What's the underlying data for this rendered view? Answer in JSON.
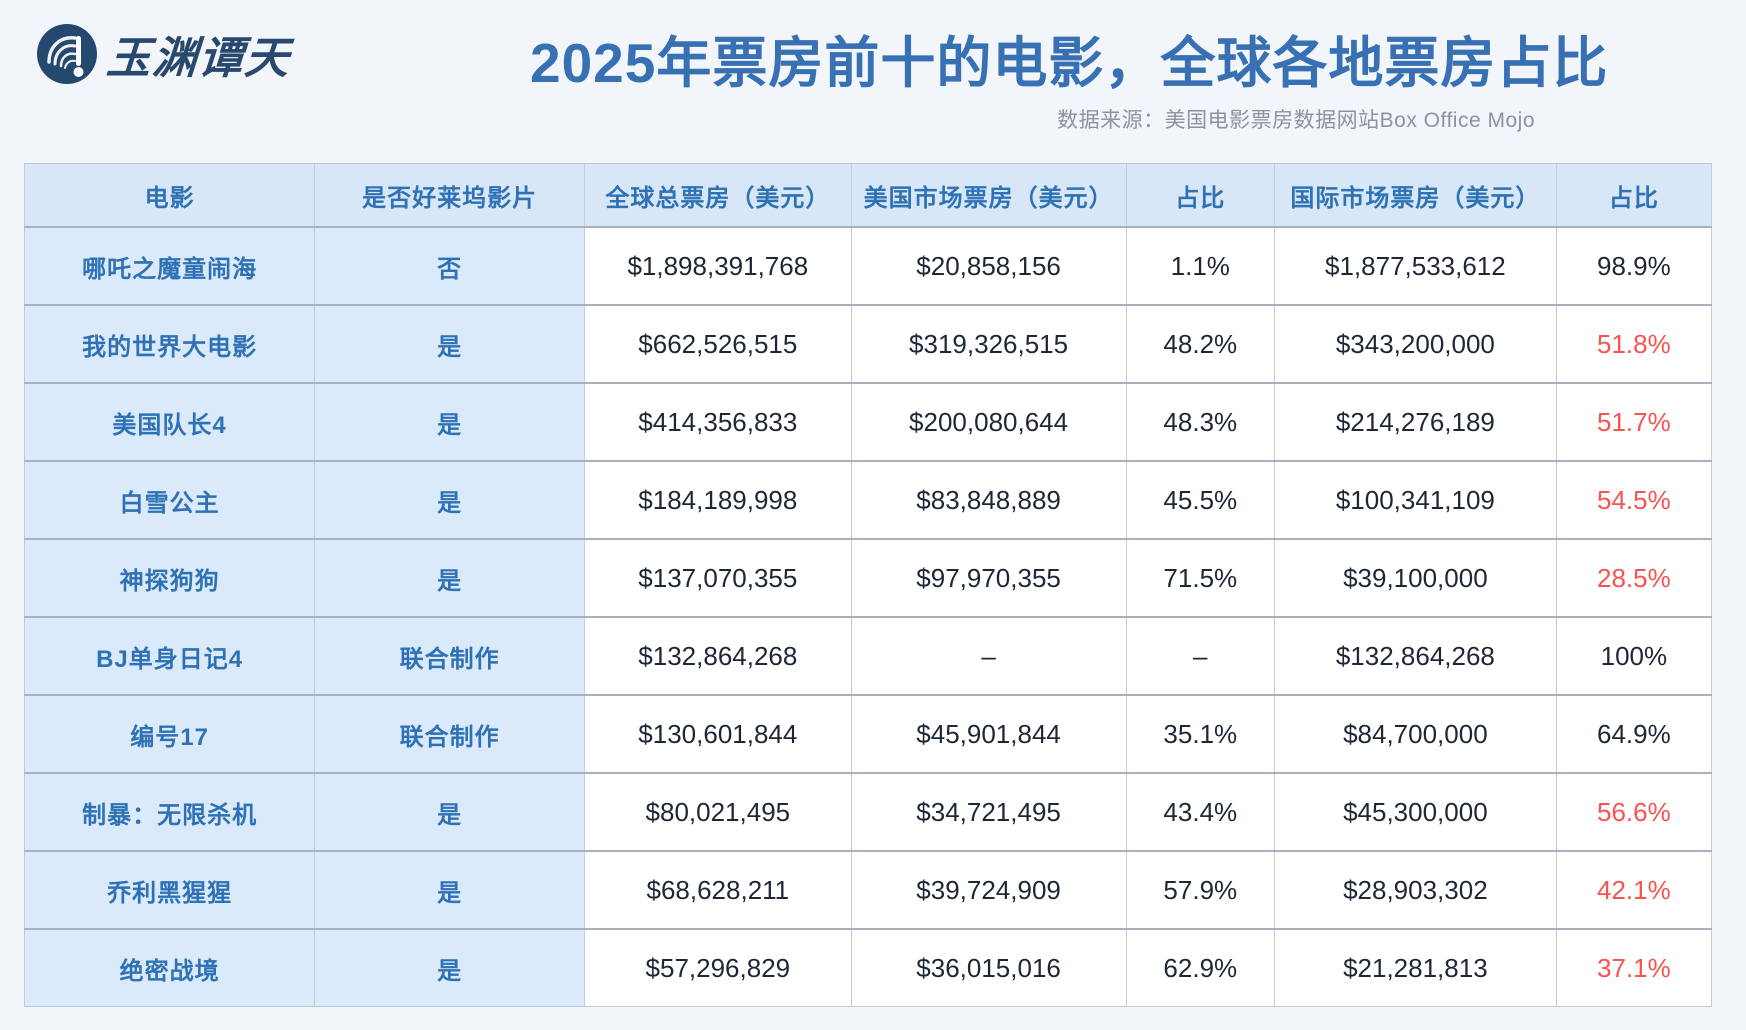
{
  "header": {
    "logo_text": "玉渊谭天",
    "title": "2025年票房前十的电影，全球各地票房占比",
    "source": "数据来源：美国电影票房数据网站Box Office Mojo"
  },
  "colors": {
    "page_background": "#f2f5f9",
    "title_blue": "#3770b3",
    "table_header_bg": "#d7e7f8",
    "label_cell_bg": "#dbeafb",
    "label_text_blue": "#2e72b5",
    "value_text_dark": "#1e2736",
    "share_red": "#f7534f",
    "logo_navy": "#24486e"
  },
  "chart_data": {
    "type": "table",
    "title": "2025年票房前十的电影，全球各地票房占比",
    "source": "数据来源：美国电影票房数据网站Box Office Mojo",
    "columns": [
      "电影",
      "是否好莱坞影片",
      "全球总票房（美元）",
      "美国市场票房（美元）",
      "占比",
      "国际市场票房（美元）",
      "占比"
    ],
    "column_width_percents": [
      17.2,
      16.0,
      15.8,
      16.3,
      8.8,
      16.7,
      9.2
    ],
    "label_column_count": 2,
    "rows": [
      [
        "哪吒之魔童闹海",
        "否",
        "$1,898,391,768",
        "$20,858,156",
        "1.1%",
        "$1,877,533,612",
        "98.9%"
      ],
      [
        "我的世界大电影",
        "是",
        "$662,526,515",
        "$319,326,515",
        "48.2%",
        "$343,200,000",
        "51.8%"
      ],
      [
        "美国队长4",
        "是",
        "$414,356,833",
        "$200,080,644",
        "48.3%",
        "$214,276,189",
        "51.7%"
      ],
      [
        "白雪公主",
        "是",
        "$184,189,998",
        "$83,848,889",
        "45.5%",
        "$100,341,109",
        "54.5%"
      ],
      [
        "神探狗狗",
        "是",
        "$137,070,355",
        "$97,970,355",
        "71.5%",
        "$39,100,000",
        "28.5%"
      ],
      [
        "BJ单身日记4",
        "联合制作",
        "$132,864,268",
        "–",
        "–",
        "$132,864,268",
        "100%"
      ],
      [
        "编号17",
        "联合制作",
        "$130,601,844",
        "$45,901,844",
        "35.1%",
        "$84,700,000",
        "64.9%"
      ],
      [
        "制暴：无限杀机",
        "是",
        "$80,021,495",
        "$34,721,495",
        "43.4%",
        "$45,300,000",
        "56.6%"
      ],
      [
        "乔利黑猩猩",
        "是",
        "$68,628,211",
        "$39,724,909",
        "57.9%",
        "$28,903,302",
        "42.1%"
      ],
      [
        "绝密战境",
        "是",
        "$57,296,829",
        "$36,015,016",
        "62.9%",
        "$21,281,813",
        "37.1%"
      ]
    ],
    "red_share_row_indexes": [
      1,
      2,
      3,
      4,
      7,
      8,
      9
    ]
  }
}
